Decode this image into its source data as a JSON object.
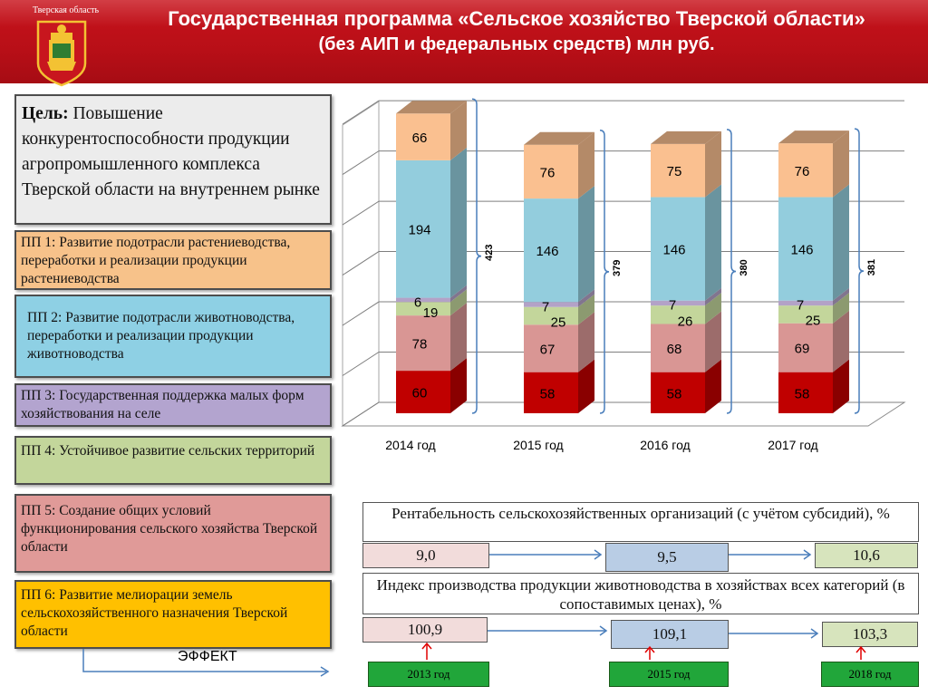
{
  "header": {
    "region_name": "Тверская область",
    "title_line1": "Государственная программа «Сельское хозяйство Тверской области»",
    "title_line2": "(без АИП и федеральных средств) млн руб.",
    "colors": {
      "background": "#c0141c",
      "text": "#ffffff"
    }
  },
  "goal": {
    "label": "Цель:",
    "text": " Повышение конкурентоспособности продукции агропромышленного комплекса Тверской области на внутреннем рынке"
  },
  "programs": [
    {
      "text": "ПП 1:  Развитие подотрасли растениеводства, переработки и реализации продукции растениеводства",
      "color": "#f7c28a"
    },
    {
      "text": "ПП 2: Развитие подотрасли животноводства, переработки и реализации продукции животноводства",
      "color": "#8ed0e4"
    },
    {
      "text": "ПП 3: Государственная поддержка малых форм хозяйствования на селе",
      "color": "#b3a4cf"
    },
    {
      "text": "ПП 4: Устойчивое развитие  сельских территорий",
      "color": "#c3d69b"
    },
    {
      "text": "ПП 5: Создание общих условий функционирования сельского хозяйства Тверской области",
      "color": "#e09a98"
    },
    {
      "text": "ПП 6: Развитие мелиорации земель сельскохозяйственного назначения Тверской области",
      "color": "#ffc000"
    }
  ],
  "effect_label": "ЭФФЕКТ",
  "chart_data": {
    "type": "bar",
    "stacked": true,
    "three_d": true,
    "categories": [
      "2014 год",
      "2015 год",
      "2016 год",
      "2017 год"
    ],
    "series": [
      {
        "values": [
          60,
          58,
          58,
          58
        ],
        "color": "#c00000"
      },
      {
        "values": [
          78,
          67,
          68,
          69
        ],
        "color": "#d99694"
      },
      {
        "values": [
          19,
          25,
          26,
          25
        ],
        "color": "#c3d69b"
      },
      {
        "values": [
          6,
          7,
          7,
          7
        ],
        "color": "#b3a2c7"
      },
      {
        "values": [
          194,
          146,
          146,
          146
        ],
        "color": "#93cddd"
      },
      {
        "values": [
          66,
          76,
          75,
          76
        ],
        "color": "#fac090"
      }
    ],
    "totals": [
      "423",
      "379",
      "380",
      "381"
    ],
    "ylim": [
      0,
      440
    ],
    "grid": true
  },
  "indicators": [
    {
      "title": "Рентабельность сельскохозяйственных организаций (с учётом субсидий), %",
      "values": [
        {
          "value": "9,0",
          "color": "#f2dcdb"
        },
        {
          "value": "9,5",
          "color": "#b9cde5"
        },
        {
          "value": "10,6",
          "color": "#d7e4bd"
        }
      ]
    },
    {
      "title": "Индекс производства продукции животноводства в хозяйствах всех категорий (в сопоставимых ценах), %",
      "values": [
        {
          "value": "100,9",
          "color": "#f2dcdb"
        },
        {
          "value": "109,1",
          "color": "#b9cde5"
        },
        {
          "value": "103,3",
          "color": "#d7e4bd"
        }
      ]
    }
  ],
  "years": [
    "2013 год",
    "2015 год",
    "2018 год"
  ]
}
